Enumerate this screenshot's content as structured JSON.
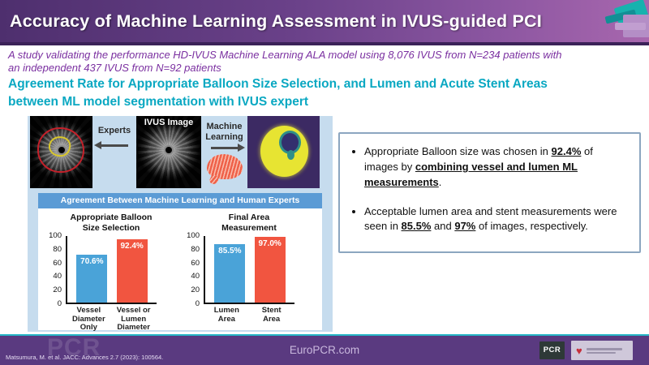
{
  "header": {
    "title": "Accuracy of Machine Learning Assessment in IVUS-guided PCI"
  },
  "subtitle": {
    "lines": [
      "A study validating the performance HD-IVUS Machine Learning ALA model using 8,076 IVUS from N=234 patients with",
      "an independent 437 IVUS from N=92 patients"
    ]
  },
  "heading": {
    "lines": [
      "Agreement Rate for Appropriate Balloon Size Selection, and Lumen and Acute Stent Areas",
      "between ML model segmentation with IVUS expert"
    ]
  },
  "diagram": {
    "experts_label": "Experts",
    "ivus_label": "IVUS Image",
    "ml_label": "Machine Learning",
    "icons": [
      "arrow-left-icon",
      "arrow-right-icon",
      "brain-icon",
      "expert-contour-overlay",
      "ml-segmentation-mask"
    ]
  },
  "chart_data": {
    "banner": "Agreement Between Machine Learning and Human Experts",
    "charts": [
      {
        "type": "bar",
        "title": "Appropriate Balloon\nSize Selection",
        "categories": [
          "Vessel\nDiameter\nOnly",
          "Vessel or\nLumen\nDiameter"
        ],
        "values": [
          70.6,
          92.4
        ],
        "value_labels": [
          "70.6%",
          "92.4%"
        ],
        "bar_colors": [
          "#4aa3d8",
          "#f15540"
        ],
        "ylim": [
          0,
          100
        ],
        "yticks": [
          0,
          20,
          40,
          60,
          80,
          100
        ]
      },
      {
        "type": "bar",
        "title": "Final Area\nMeasurement",
        "categories": [
          "Lumen\nArea",
          "Stent\nArea"
        ],
        "values": [
          85.5,
          97.0
        ],
        "value_labels": [
          "85.5%",
          "97.0%"
        ],
        "bar_colors": [
          "#4aa3d8",
          "#f15540"
        ],
        "ylim": [
          0,
          100
        ],
        "yticks": [
          0,
          20,
          40,
          60,
          80,
          100
        ]
      }
    ]
  },
  "bullets": [
    {
      "segments": [
        {
          "text": "Appropriate Balloon size was chosen in "
        },
        {
          "text": "92.4%",
          "bold": true,
          "underline": true
        },
        {
          "text": " of images by "
        },
        {
          "text": "combining vessel and lumen ML measurements",
          "bold": true,
          "underline": true
        },
        {
          "text": "."
        }
      ]
    },
    {
      "segments": [
        {
          "text": "Acceptable lumen area and stent measurements were seen in "
        },
        {
          "text": "85.5%",
          "bold": true,
          "underline": true
        },
        {
          "text": " and "
        },
        {
          "text": "97%",
          "bold": true,
          "underline": true
        },
        {
          "text": " of images, respectively."
        }
      ]
    }
  ],
  "footer": {
    "citation": "Matsumura, M. et al. JACC: Advances 2.7 (2023): 100564.",
    "site": "EuroPCR.com",
    "pcr_logo": "PCR",
    "watermark": "PCR"
  },
  "colors": {
    "title_gradient_start": "#4e2f6e",
    "title_gradient_end": "#a867ae",
    "subtitle_purple": "#7a2fa0",
    "heading_teal": "#0aa8c2",
    "panel_blue": "#c6dcee",
    "banner_blue": "#5b9bd5",
    "bar_blue": "#4aa3d8",
    "bar_red": "#f15540",
    "footer_purple": "#5a3a80",
    "accent_cyan": "#27b6c6"
  }
}
